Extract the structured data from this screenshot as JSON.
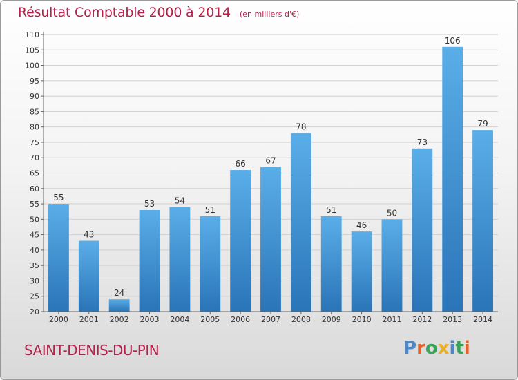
{
  "header": {
    "title": "Résultat Comptable 2000 à 2014",
    "subtitle": "(en milliers d'€)"
  },
  "footer": {
    "city": "SAINT-DENIS-DU-PIN",
    "brand": "Proxiti",
    "brand_colors": [
      "#4f86c6",
      "#e4632b",
      "#3aa35a",
      "#e8b021",
      "#4f86c6",
      "#3aa35a",
      "#e4632b"
    ]
  },
  "colors": {
    "bar_top": "#5aaee8",
    "bar_bottom": "#2a74b8",
    "title": "#b5204a",
    "grid": "#d0d0d0"
  },
  "chart_data": {
    "type": "bar",
    "title": "Résultat Comptable 2000 à 2014",
    "subtitle": "(en milliers d'€)",
    "categories": [
      "2000",
      "2001",
      "2002",
      "2003",
      "2004",
      "2005",
      "2006",
      "2007",
      "2008",
      "2009",
      "2010",
      "2011",
      "2012",
      "2013",
      "2014"
    ],
    "values": [
      55,
      43,
      24,
      53,
      54,
      51,
      66,
      67,
      78,
      51,
      46,
      50,
      73,
      106,
      79
    ],
    "ylim": [
      20,
      110
    ],
    "yticks": [
      20,
      25,
      30,
      35,
      40,
      45,
      50,
      55,
      60,
      65,
      70,
      75,
      80,
      85,
      90,
      95,
      100,
      105,
      110
    ],
    "grid": true,
    "data_labels": true
  }
}
